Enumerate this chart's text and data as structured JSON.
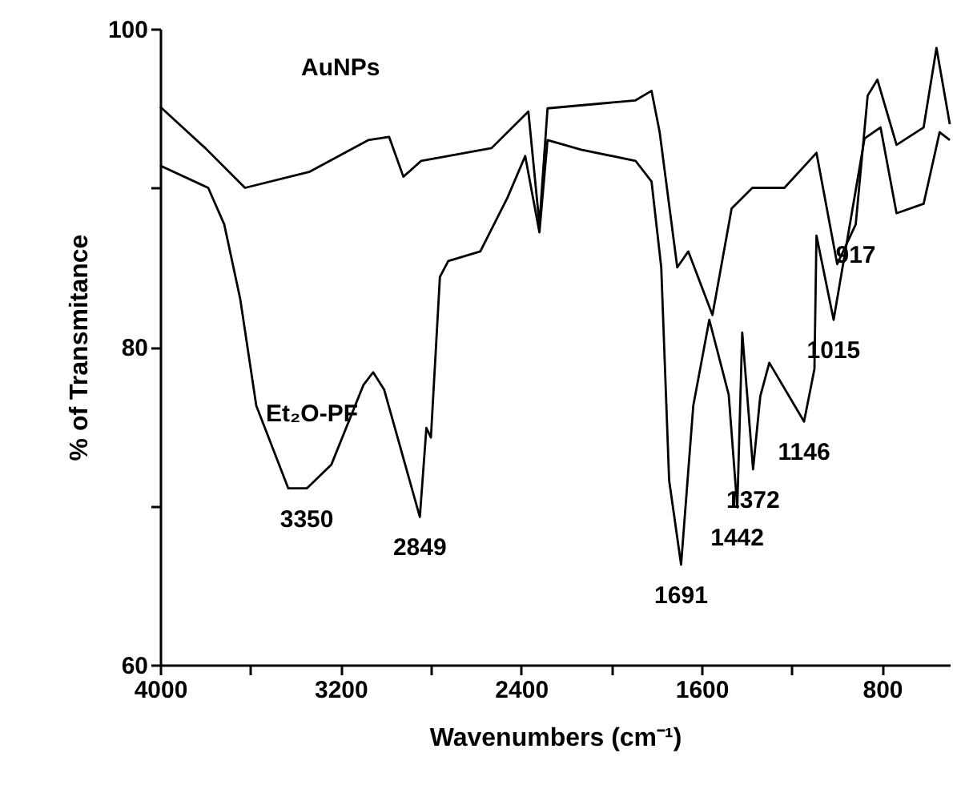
{
  "chart_data": {
    "type": "line",
    "xlabel": "Wavenumbers (cm⁻¹)",
    "ylabel": "% of Transmitance",
    "xlim": [
      4000,
      500
    ],
    "ylim": [
      60,
      100
    ],
    "xticks": [
      4000,
      {
        "value": 3600,
        "label": null
      },
      3200,
      {
        "value": 2800,
        "label": null
      },
      2400,
      {
        "value": 2000,
        "label": null
      },
      1600,
      {
        "value": 1200,
        "label": null
      },
      800
    ],
    "yticks": [
      60,
      {
        "value": 70,
        "label": null
      },
      80,
      {
        "value": 90,
        "label": null
      },
      100
    ],
    "grid": false,
    "line_style": "solid",
    "series": [
      {
        "name": "AuNPs",
        "color": "#000000",
        "x": [
          4000,
          3800,
          3624,
          3340,
          3078,
          2985,
          2922,
          2843,
          2531,
          2368,
          2319,
          2283,
          1893,
          1822,
          1786,
          1708,
          1659,
          1552,
          1467,
          1375,
          1233,
          1091,
          999,
          917,
          864,
          821,
          736,
          616,
          559,
          500
        ],
        "values": [
          95.1,
          92.5,
          90.0,
          91.0,
          93.0,
          93.2,
          90.7,
          91.7,
          92.5,
          94.8,
          87.7,
          95.0,
          95.5,
          96.1,
          93.5,
          85.0,
          86.0,
          82.0,
          88.7,
          90.0,
          90.0,
          92.2,
          85.2,
          87.7,
          95.8,
          96.8,
          92.7,
          93.8,
          98.8,
          94.0
        ]
      },
      {
        "name": "Et₂O-PF",
        "color": "#000000",
        "x": [
          4000,
          3787,
          3716,
          3645,
          3574,
          3432,
          3350,
          3241,
          3099,
          3056,
          3007,
          2849,
          2820,
          2800,
          2760,
          2723,
          2581,
          2460,
          2382,
          2319,
          2283,
          2134,
          1893,
          1822,
          1779,
          1744,
          1691,
          1637,
          1566,
          1480,
          1442,
          1420,
          1372,
          1340,
          1300,
          1146,
          1100,
          1091,
          1015,
          878,
          807,
          736,
          616,
          545,
          500
        ],
        "values": [
          91.4,
          90.0,
          87.7,
          83.0,
          76.3,
          71.1,
          71.1,
          72.6,
          77.6,
          78.4,
          77.3,
          69.3,
          74.9,
          74.3,
          84.4,
          85.4,
          86.0,
          89.4,
          92.0,
          87.2,
          93.0,
          92.4,
          91.7,
          90.4,
          85.0,
          71.6,
          66.3,
          76.3,
          81.7,
          77.0,
          69.9,
          80.9,
          72.3,
          76.9,
          79.0,
          75.3,
          78.6,
          87.0,
          81.7,
          93.1,
          93.8,
          88.4,
          89.0,
          93.5,
          93.0
        ]
      }
    ],
    "annotations": [
      {
        "text": "3350",
        "x": 3350,
        "y": 71.1
      },
      {
        "text": "2849",
        "x": 2849,
        "y": 69.3
      },
      {
        "text": "1691",
        "x": 1691,
        "y": 66.3
      },
      {
        "text": "1442",
        "x": 1442,
        "y": 69.9
      },
      {
        "text": "1372",
        "x": 1372,
        "y": 72.3
      },
      {
        "text": "1146",
        "x": 1146,
        "y": 75.3
      },
      {
        "text": "1015",
        "x": 1015,
        "y": 81.7
      },
      {
        "text": "917",
        "x": 917,
        "y": 87.7
      }
    ]
  }
}
